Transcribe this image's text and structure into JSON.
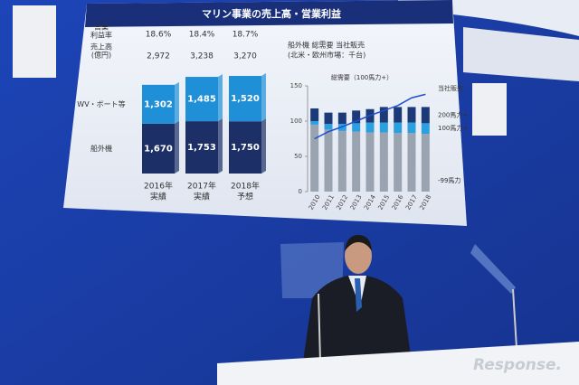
{
  "title": "マリン事業の売上高・営業利益",
  "watermark": "Response.",
  "chart_data": [
    {
      "type": "bar",
      "categories": [
        "2016年",
        "2017年",
        "2018年"
      ],
      "category_notes": [
        "実績",
        "実績",
        "予想"
      ],
      "margin_label": [
        "営業",
        "利益率"
      ],
      "margins": {
        "values": [
          18.6,
          18.4,
          18.7
        ],
        "value_labels": [
          "18.6%",
          "18.4%",
          "18.7%"
        ]
      },
      "totals_label": [
        "売上高",
        "(億円)"
      ],
      "totals": {
        "values": [
          2972,
          3238,
          3270
        ],
        "value_labels": [
          "2,972",
          "3,238",
          "3,270"
        ]
      },
      "series": [
        {
          "name": "船外機",
          "color": "#1c2f66",
          "values": [
            1670,
            1753,
            1750
          ],
          "value_labels": [
            "1,670",
            "1,753",
            "1,750"
          ]
        },
        {
          "name": "WV・ボート等",
          "color": "#1f8fd8",
          "values": [
            1302,
            1485,
            1520
          ],
          "value_labels": [
            "1,302",
            "1,485",
            "1,520"
          ]
        }
      ]
    },
    {
      "type": "bar",
      "title": "船外機 総需要 当社販売",
      "subtitle": "(北米・欧州市場：千台)",
      "bars_label": "当社販売",
      "categories": [
        "2010",
        "2011",
        "2012",
        "2013",
        "2014",
        "2015",
        "2016",
        "2017",
        "2018"
      ],
      "ylim": [
        0,
        150
      ],
      "yticks": [
        0,
        50,
        100,
        150
      ],
      "series": [
        {
          "name": "-99馬力",
          "color": "#9aa3b0",
          "values": [
            95,
            88,
            86,
            85,
            84,
            84,
            83,
            83,
            82
          ]
        },
        {
          "name": "100馬力+",
          "color": "#2aa0e0",
          "values": [
            5,
            8,
            10,
            12,
            14,
            14,
            15,
            15,
            15
          ]
        },
        {
          "name": "200馬力+",
          "color": "#1c3a78",
          "values": [
            18,
            16,
            16,
            18,
            19,
            22,
            22,
            22,
            23
          ]
        },
        {
          "name": "総需要（100馬力+）",
          "type": "line",
          "color": "#1e4fd0",
          "values": [
            75,
            85,
            92,
            100,
            108,
            115,
            122,
            133,
            138
          ]
        }
      ]
    }
  ]
}
